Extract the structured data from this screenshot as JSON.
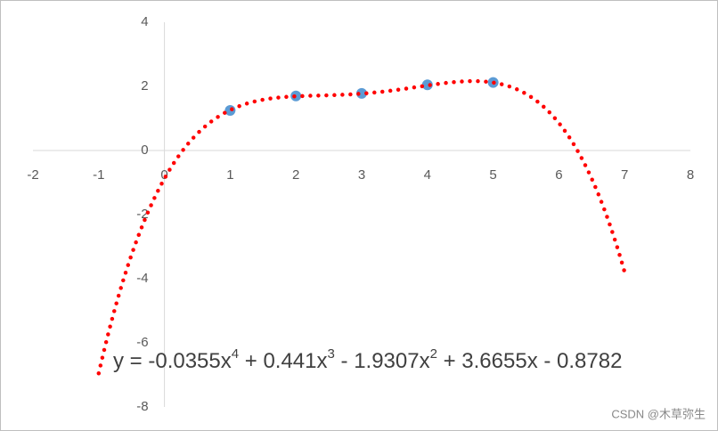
{
  "chart_data": {
    "type": "scatter",
    "series": [
      {
        "color": "#5b9bd5",
        "x": [
          1,
          2,
          3,
          4,
          5
        ],
        "values": [
          1.25,
          1.7,
          1.78,
          2.05,
          2.12
        ]
      }
    ],
    "xlim": [
      -2,
      8
    ],
    "xticks": [
      -2,
      -1,
      0,
      1,
      2,
      3,
      4,
      5,
      6,
      7,
      8
    ],
    "ylim": [
      -8,
      4
    ],
    "yticks": [
      -8,
      -6,
      -4,
      -2,
      0,
      2,
      4
    ],
    "trendline": {
      "color": "#ff0000",
      "coefficients": [
        -0.0355,
        0.441,
        -1.9307,
        3.6655,
        -0.8782
      ],
      "xrange": [
        -1,
        7
      ],
      "equation": [
        "y = -0.0355x",
        "4",
        " + 0.441x",
        "3",
        " - 1.9307x",
        "2",
        " + 3.6655x - 0.8782"
      ]
    },
    "watermark": "CSDN @木草弥生"
  }
}
